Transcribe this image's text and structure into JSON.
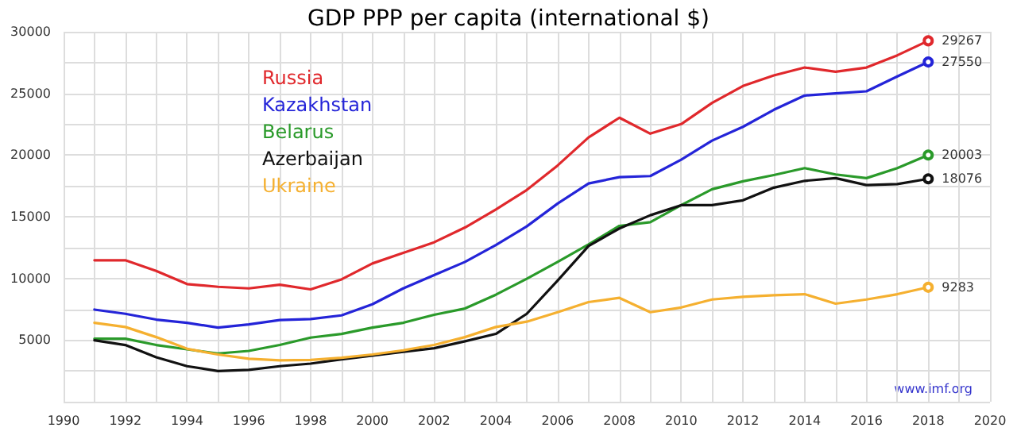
{
  "chart_data": {
    "type": "line",
    "title": "GDP PPP per capita (international $)",
    "x": [
      1991,
      1992,
      1993,
      1994,
      1995,
      1996,
      1997,
      1998,
      1999,
      2000,
      2001,
      2002,
      2003,
      2004,
      2005,
      2006,
      2007,
      2008,
      2009,
      2010,
      2011,
      2012,
      2013,
      2014,
      2015,
      2016,
      2017,
      2018
    ],
    "series": [
      {
        "name": "Russia",
        "color": "#e0282c",
        "values": [
          11470,
          11470,
          10610,
          9540,
          9320,
          9190,
          9490,
          9110,
          9920,
          11210,
          12070,
          12930,
          14130,
          15590,
          17170,
          19160,
          21430,
          23030,
          21740,
          22510,
          24230,
          25600,
          26460,
          27100,
          26760,
          27100,
          28090,
          29267
        ],
        "value_labels": [
          null,
          null,
          null,
          null,
          null,
          null,
          null,
          null,
          null,
          null,
          null,
          null,
          null,
          null,
          null,
          null,
          null,
          null,
          null,
          null,
          null,
          null,
          null,
          null,
          null,
          null,
          null,
          "29267"
        ]
      },
      {
        "name": "Kazakhstan",
        "color": "#2424d8",
        "values": [
          7470,
          7130,
          6660,
          6400,
          6010,
          6270,
          6620,
          6700,
          7000,
          7900,
          9190,
          10270,
          11340,
          12710,
          14220,
          16070,
          17700,
          18210,
          18300,
          19630,
          21170,
          22290,
          23670,
          24830,
          25000,
          25170,
          26380,
          27550
        ],
        "value_labels": [
          null,
          null,
          null,
          null,
          null,
          null,
          null,
          null,
          null,
          null,
          null,
          null,
          null,
          null,
          null,
          null,
          null,
          null,
          null,
          null,
          null,
          null,
          null,
          null,
          null,
          null,
          null,
          "27550"
        ]
      },
      {
        "name": "Belarus",
        "color": "#2a9a2a",
        "values": [
          5110,
          5110,
          4600,
          4250,
          3910,
          4120,
          4600,
          5200,
          5500,
          6010,
          6400,
          7050,
          7560,
          8680,
          9970,
          11340,
          12760,
          14260,
          14560,
          15940,
          17230,
          17870,
          18380,
          18940,
          18430,
          18130,
          18940,
          20003
        ],
        "value_labels": [
          null,
          null,
          null,
          null,
          null,
          null,
          null,
          null,
          null,
          null,
          null,
          null,
          null,
          null,
          null,
          null,
          null,
          null,
          null,
          null,
          null,
          null,
          null,
          null,
          null,
          null,
          null,
          "20003"
        ]
      },
      {
        "name": "Azerbaijan",
        "color": "#111111",
        "values": [
          4980,
          4600,
          3610,
          2880,
          2490,
          2580,
          2880,
          3090,
          3440,
          3740,
          4040,
          4340,
          4900,
          5500,
          7130,
          9830,
          12630,
          14050,
          15120,
          15940,
          15940,
          16330,
          17360,
          17910,
          18130,
          17570,
          17650,
          18076
        ],
        "value_labels": [
          null,
          null,
          null,
          null,
          null,
          null,
          null,
          null,
          null,
          null,
          null,
          null,
          null,
          null,
          null,
          null,
          null,
          null,
          null,
          null,
          null,
          null,
          null,
          null,
          null,
          null,
          null,
          "18076"
        ]
      },
      {
        "name": "Ukraine",
        "color": "#f5b030",
        "values": [
          6400,
          6060,
          5240,
          4290,
          3830,
          3480,
          3350,
          3390,
          3570,
          3830,
          4170,
          4600,
          5240,
          6060,
          6490,
          7260,
          8080,
          8420,
          7260,
          7640,
          8290,
          8510,
          8630,
          8720,
          7950,
          8290,
          8720,
          9283
        ],
        "value_labels": [
          null,
          null,
          null,
          null,
          null,
          null,
          null,
          null,
          null,
          null,
          null,
          null,
          null,
          null,
          null,
          null,
          null,
          null,
          null,
          null,
          null,
          null,
          null,
          null,
          null,
          null,
          null,
          "9283"
        ]
      }
    ],
    "xlim": [
      1990,
      2020
    ],
    "xticks": [
      1990,
      1992,
      1994,
      1996,
      1998,
      2000,
      2002,
      2004,
      2006,
      2008,
      2010,
      2012,
      2014,
      2016,
      2018,
      2020
    ],
    "ylim": [
      0,
      30000
    ],
    "yticks": [
      {
        "value": 0,
        "label": null
      },
      5000,
      10000,
      15000,
      20000,
      25000,
      30000
    ],
    "grid": true,
    "legend": "top left",
    "line_style": "solid",
    "annotations": [
      "www.imf.org"
    ]
  }
}
